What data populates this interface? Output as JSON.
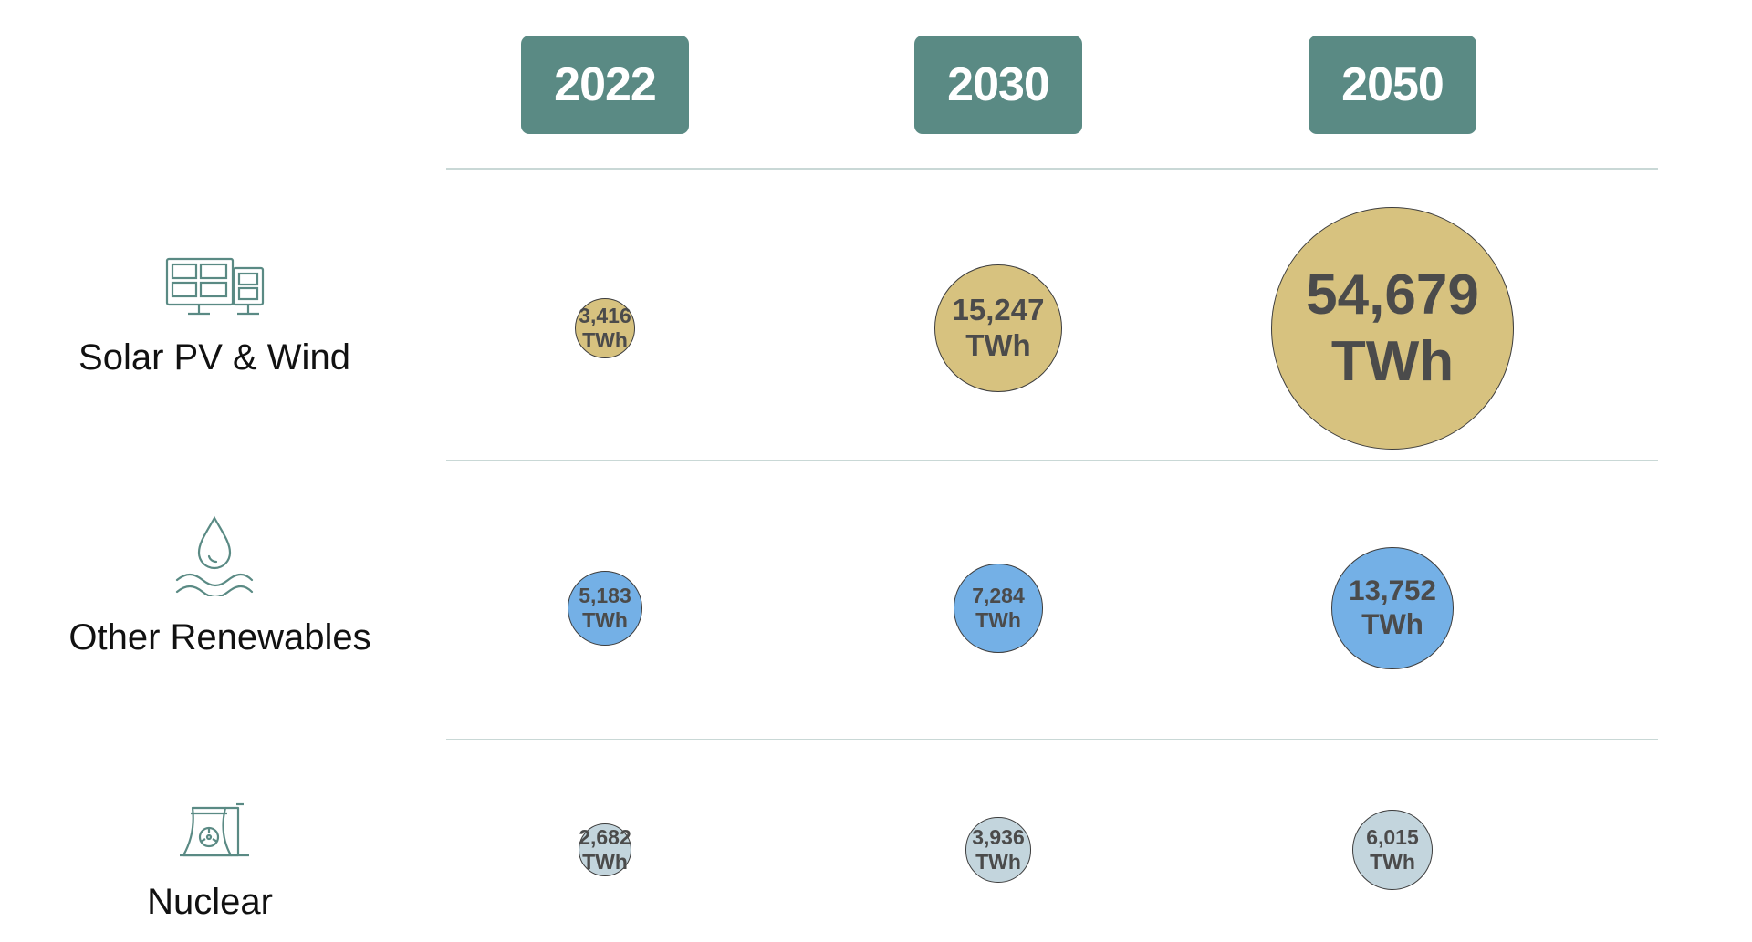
{
  "chart_data": {
    "type": "bubble",
    "categories": [
      "2022",
      "2030",
      "2050"
    ],
    "series": [
      {
        "name": "Solar PV & Wind",
        "icon": "solar-panel-icon",
        "color": "#d7c27f",
        "values": [
          3416,
          15247,
          54679
        ]
      },
      {
        "name": "Other Renewables",
        "icon": "water-drop-icon",
        "color": "#74b0e6",
        "values": [
          5183,
          7284,
          13752
        ]
      },
      {
        "name": "Nuclear",
        "icon": "nuclear-plant-icon",
        "color": "#c3d5dd",
        "values": [
          2682,
          3936,
          6015
        ]
      }
    ],
    "value_labels": [
      [
        "3,416",
        "15,247",
        "54,679"
      ],
      [
        "5,183",
        "7,284",
        "13,752"
      ],
      [
        "2,682",
        "3,936",
        "6,015"
      ]
    ],
    "unit": "TWh",
    "title": "",
    "xlabel": "",
    "ylabel": ""
  },
  "colors": {
    "badge": "#5a8a84",
    "icon_stroke": "#5a8a84",
    "divider": "#c9d8d6"
  }
}
